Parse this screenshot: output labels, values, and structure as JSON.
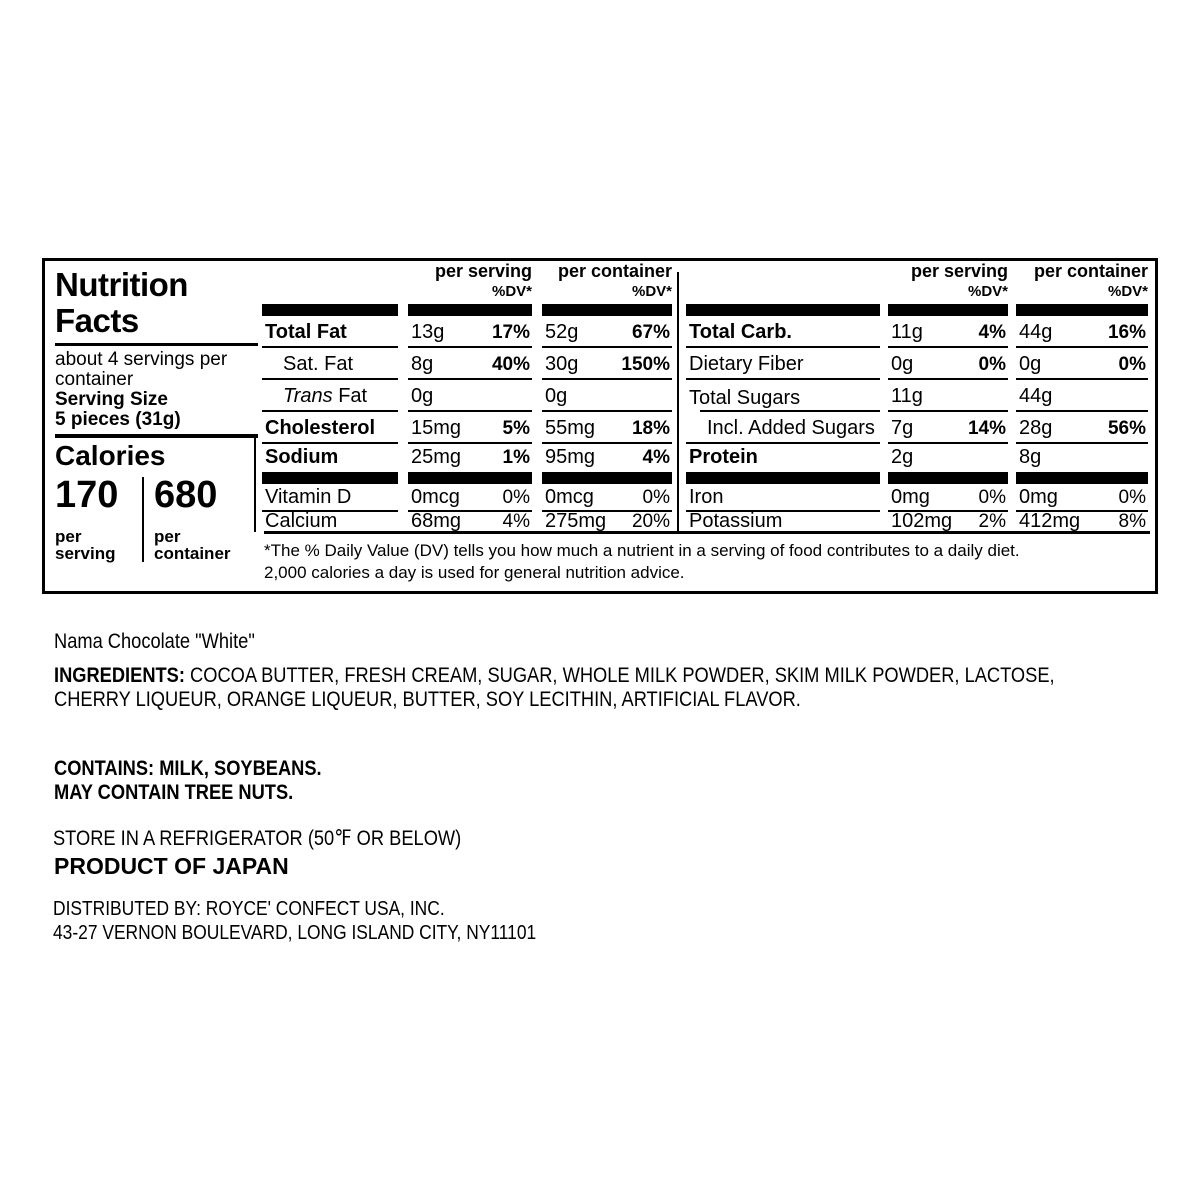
{
  "nutrition_label": {
    "title": "Nutrition Facts",
    "servings_per_container": "about 4 servings per container",
    "serving_size_label": "Serving Size",
    "serving_size_value": "5 pieces (31g)",
    "calories_label": "Calories",
    "calories_per_serving": "170",
    "calories_per_serving_label": "per serving",
    "calories_per_container": "680",
    "calories_per_container_label": "per container",
    "column_headers": {
      "per_serving": "per serving",
      "per_container": "per container",
      "dv": "%DV*"
    },
    "left_table": {
      "main_rows": [
        {
          "name": "Total Fat",
          "bold": true,
          "serving_amount": "13g",
          "serving_dv": "17%",
          "container_amount": "52g",
          "container_dv": "67%",
          "dv_bold": true,
          "rule": "full"
        },
        {
          "name": "Sat. Fat",
          "indent": true,
          "serving_amount": "8g",
          "serving_dv": "40%",
          "container_amount": "30g",
          "container_dv": "150%",
          "dv_bold": true,
          "rule": "full"
        },
        {
          "name": "Trans Fat",
          "indent": true,
          "italic_first": true,
          "serving_amount": "0g",
          "serving_dv": "",
          "container_amount": "0g",
          "container_dv": "",
          "rule": "full"
        },
        {
          "name": "Cholesterol",
          "bold": true,
          "serving_amount": "15mg",
          "serving_dv": "5%",
          "container_amount": "55mg",
          "container_dv": "18%",
          "dv_bold": true,
          "rule": "full"
        },
        {
          "name": "Sodium",
          "bold": true,
          "serving_amount": "25mg",
          "serving_dv": "1%",
          "container_amount": "95mg",
          "container_dv": "4%",
          "dv_bold": true,
          "rule": "none"
        }
      ],
      "micro_rows": [
        {
          "name": "Vitamin D",
          "serving_amount": "0mcg",
          "serving_dv": "0%",
          "container_amount": "0mcg",
          "container_dv": "0%",
          "rule": "full"
        },
        {
          "name": "Calcium",
          "serving_amount": "68mg",
          "serving_dv": "4%",
          "container_amount": "275mg",
          "container_dv": "20%",
          "rule": "none"
        }
      ]
    },
    "right_table": {
      "main_rows": [
        {
          "name": "Total Carb.",
          "bold": true,
          "serving_amount": "11g",
          "serving_dv": "4%",
          "container_amount": "44g",
          "container_dv": "16%",
          "dv_bold": true,
          "rule": "full"
        },
        {
          "name": "Dietary Fiber",
          "serving_amount": "0g",
          "serving_dv": "0%",
          "container_amount": "0g",
          "container_dv": "0%",
          "dv_bold": true,
          "rule": "full"
        },
        {
          "name": "Total Sugars",
          "serving_amount": "11g",
          "serving_dv": "",
          "container_amount": "44g",
          "container_dv": "",
          "rule": "full",
          "name_rule_indent": true
        },
        {
          "name": "Incl. Added Sugars",
          "indent": true,
          "serving_amount": "7g",
          "serving_dv": "14%",
          "container_amount": "28g",
          "container_dv": "56%",
          "dv_bold": true,
          "rule": "full"
        },
        {
          "name": "Protein",
          "bold": true,
          "serving_amount": "2g",
          "serving_dv": "",
          "container_amount": "8g",
          "container_dv": "",
          "rule": "none"
        }
      ],
      "micro_rows": [
        {
          "name": "Iron",
          "serving_amount": "0mg",
          "serving_dv": "0%",
          "container_amount": "0mg",
          "container_dv": "0%",
          "rule": "full"
        },
        {
          "name": "Potassium",
          "serving_amount": "102mg",
          "serving_dv": "2%",
          "container_amount": "412mg",
          "container_dv": "8%",
          "rule": "none"
        }
      ]
    },
    "footnote_line1": "*The % Daily Value (DV) tells you how much a nutrient in a serving of food contributes to a daily diet.",
    "footnote_line2": "2,000 calories a day is used for general nutrition advice."
  },
  "product_info": {
    "product_name": "Nama Chocolate \"White\"",
    "ingredients_label": "INGREDIENTS:",
    "ingredients_line1": "COCOA BUTTER, FRESH CREAM, SUGAR, WHOLE MILK POWDER, SKIM MILK POWDER, LACTOSE,",
    "ingredients_line2": "CHERRY LIQUEUR, ORANGE LIQUEUR, BUTTER, SOY LECITHIN, ARTIFICIAL FLAVOR.",
    "contains": "CONTAINS: MILK, SOYBEANS.",
    "may_contain": "MAY CONTAIN TREE NUTS.",
    "storage": "STORE IN A REFRIGERATOR (50℉ OR BELOW)",
    "origin": "PRODUCT OF JAPAN",
    "distributed_by": "DISTRIBUTED BY: ROYCE' CONFECT USA, INC.",
    "address": "43-27 VERNON BOULEVARD, LONG ISLAND CITY, NY11101"
  },
  "colors": {
    "text": "#000000",
    "background": "#ffffff"
  }
}
